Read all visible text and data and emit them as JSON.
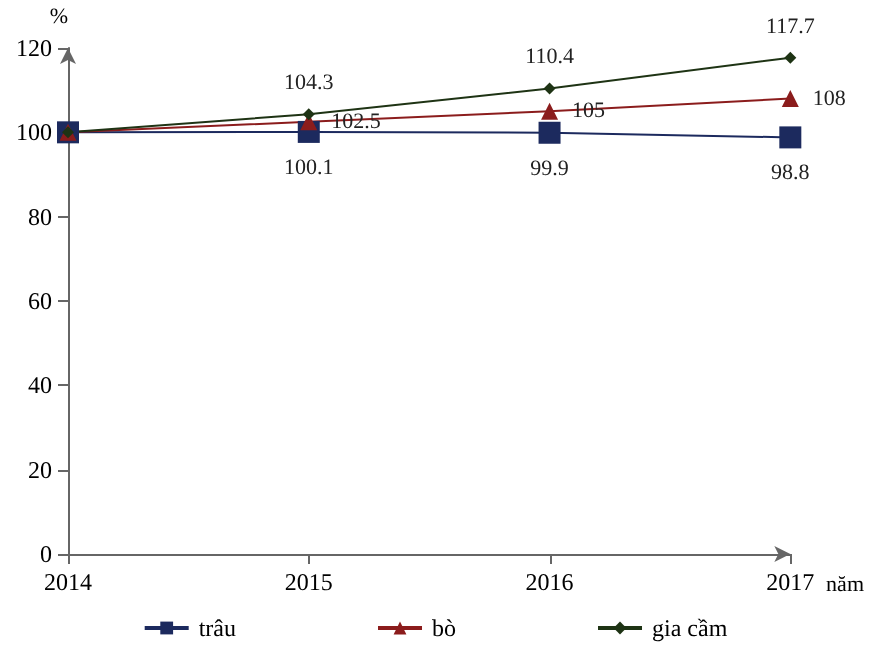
{
  "chart_data": {
    "type": "line",
    "ylabel": "%",
    "xlabel": "năm",
    "x": [
      2014,
      2015,
      2016,
      2017
    ],
    "xlim": [
      2014,
      2017
    ],
    "xticks": [
      2014,
      2015,
      2016,
      2017
    ],
    "ylim": [
      0,
      120
    ],
    "yticks": [
      0,
      20,
      40,
      60,
      80,
      100,
      120
    ],
    "grid": false,
    "legend": "bottom",
    "series": [
      {
        "name": "trâu",
        "color": "#1c2a5e",
        "marker": "square",
        "values": [
          100,
          100.1,
          99.9,
          98.8
        ],
        "value_labels": [
          null,
          "100.1",
          "99.9",
          "98.8"
        ]
      },
      {
        "name": "bò",
        "color": "#8b1c1c",
        "marker": "triangle",
        "values": [
          100,
          102.5,
          105,
          108
        ],
        "value_labels": [
          null,
          "102.5",
          "105",
          "108"
        ]
      },
      {
        "name": "gia cầm",
        "color": "#1e3314",
        "marker": "diamond",
        "values": [
          100,
          104.3,
          110.4,
          117.7
        ],
        "value_labels": [
          null,
          "104.3",
          "110.4",
          "117.7"
        ]
      }
    ]
  }
}
